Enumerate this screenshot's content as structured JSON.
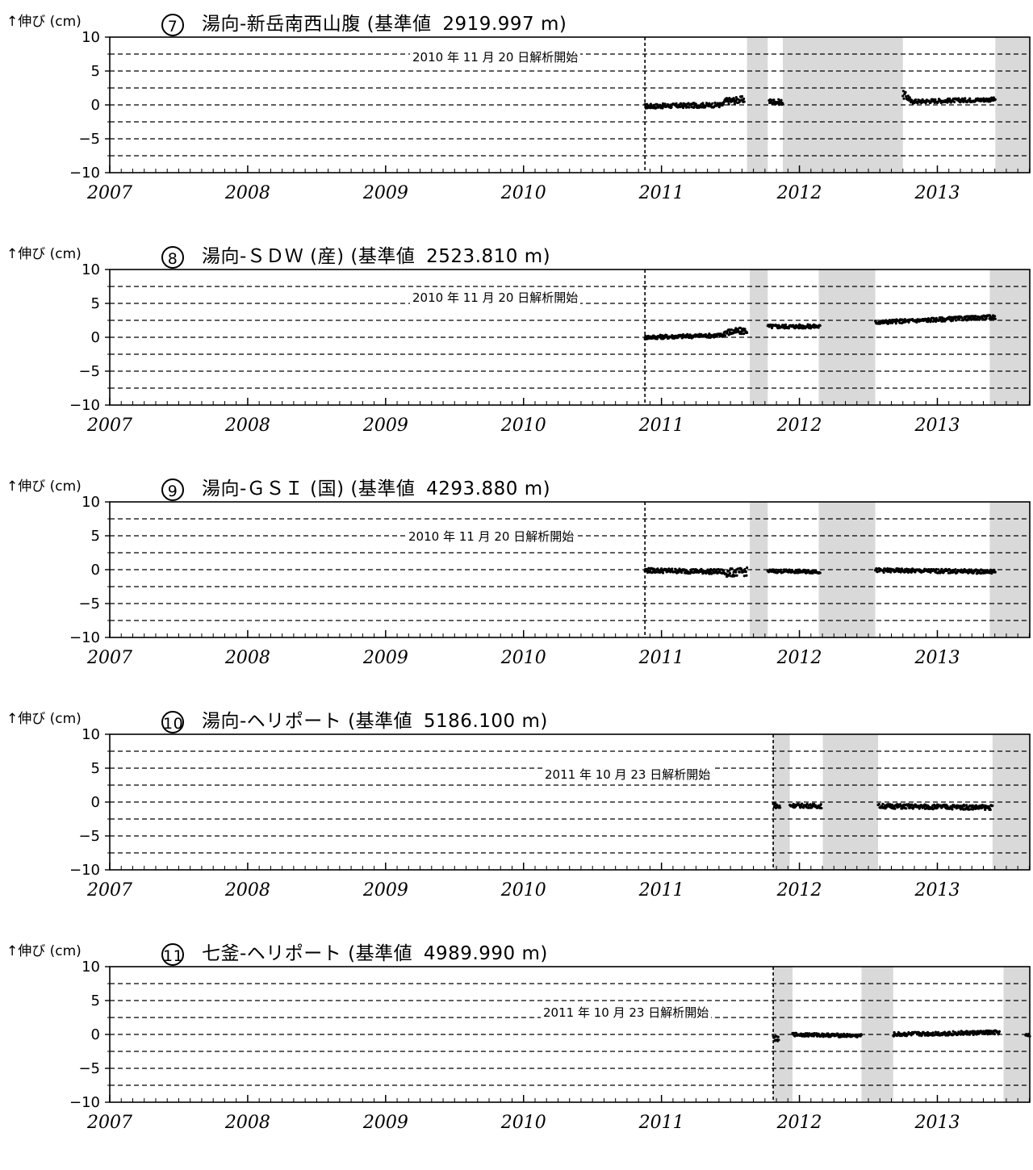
{
  "y_axis_label": "↑伸び (cm)",
  "colors": {
    "shade": "#d9d9d9",
    "points": "#000000",
    "grid": "#000000"
  },
  "chart_data": [
    {
      "type": "scatter",
      "number": "7",
      "title": "湯向-新岳南西山腹 (基準値",
      "base_value": "2919.997 m)",
      "start_note": "2010 年 11 月 20 日解析開始",
      "start": 2010.88,
      "ylim": [
        -10,
        10
      ],
      "yticks": [
        10,
        5,
        0,
        -5,
        -10
      ],
      "xlim": [
        2007,
        2013.67
      ],
      "xticks": [
        "2007",
        "2008",
        "2009",
        "2010",
        "2011",
        "2012",
        "2013"
      ],
      "gaps": [
        [
          2011.62,
          2011.77
        ],
        [
          2011.88,
          2012.75
        ],
        [
          2013.42,
          2013.67
        ]
      ],
      "segments": [
        {
          "t0": 2010.88,
          "t1": 2011.45,
          "v0": -0.2,
          "v1": 0.0,
          "noise": 0.35
        },
        {
          "t0": 2011.45,
          "t1": 2011.6,
          "v0": 0.5,
          "v1": 0.8,
          "noise": 0.5
        },
        {
          "t0": 2011.78,
          "t1": 2011.88,
          "v0": 0.5,
          "v1": 0.4,
          "noise": 0.4
        },
        {
          "t0": 2012.75,
          "t1": 2012.8,
          "v0": 1.5,
          "v1": 1.0,
          "noise": 0.6
        },
        {
          "t0": 2012.8,
          "t1": 2013.42,
          "v0": 0.5,
          "v1": 0.8,
          "noise": 0.3
        }
      ]
    },
    {
      "type": "scatter",
      "number": "8",
      "title": "湯向-ＳＤＷ (産) (基準値",
      "base_value": "2523.810 m)",
      "start_note": "2010 年 11 月 20 日解析開始",
      "start": 2010.88,
      "ylim": [
        -10,
        10
      ],
      "yticks": [
        10,
        5,
        0,
        -5,
        -10
      ],
      "xlim": [
        2007,
        2013.67
      ],
      "xticks": [
        "2007",
        "2008",
        "2009",
        "2010",
        "2011",
        "2012",
        "2013"
      ],
      "gaps": [
        [
          2011.64,
          2011.77
        ],
        [
          2012.14,
          2012.55
        ],
        [
          2013.38,
          2013.67
        ]
      ],
      "segments": [
        {
          "t0": 2010.88,
          "t1": 2011.45,
          "v0": 0.0,
          "v1": 0.3,
          "noise": 0.3
        },
        {
          "t0": 2011.45,
          "t1": 2011.62,
          "v0": 0.7,
          "v1": 1.0,
          "noise": 0.5
        },
        {
          "t0": 2011.77,
          "t1": 2012.15,
          "v0": 1.6,
          "v1": 1.6,
          "noise": 0.3
        },
        {
          "t0": 2012.55,
          "t1": 2013.42,
          "v0": 2.2,
          "v1": 3.0,
          "noise": 0.3
        }
      ]
    },
    {
      "type": "scatter",
      "number": "9",
      "title": "湯向-ＧＳＩ (国) (基準値",
      "base_value": "4293.880 m)",
      "start_note": "2010 年 11 月 20 日解析開始",
      "start": 2010.88,
      "ylim": [
        -10,
        10
      ],
      "yticks": [
        10,
        5,
        0,
        -5,
        -10
      ],
      "xlim": [
        2007,
        2013.67
      ],
      "xticks": [
        "2007",
        "2008",
        "2009",
        "2010",
        "2011",
        "2012",
        "2013"
      ],
      "gaps": [
        [
          2011.64,
          2011.77
        ],
        [
          2012.14,
          2012.55
        ],
        [
          2013.38,
          2013.67
        ]
      ],
      "segments": [
        {
          "t0": 2010.88,
          "t1": 2011.45,
          "v0": -0.1,
          "v1": -0.3,
          "noise": 0.35
        },
        {
          "t0": 2011.45,
          "t1": 2011.62,
          "v0": -0.5,
          "v1": -0.3,
          "noise": 0.6
        },
        {
          "t0": 2011.77,
          "t1": 2012.15,
          "v0": -0.2,
          "v1": -0.3,
          "noise": 0.25
        },
        {
          "t0": 2012.55,
          "t1": 2013.42,
          "v0": -0.1,
          "v1": -0.3,
          "noise": 0.3
        }
      ]
    },
    {
      "type": "scatter",
      "number": "10",
      "title": "湯向-ヘリポート (基準値",
      "base_value": "5186.100 m)",
      "start_note": "2011 年 10 月 23 日解析開始",
      "start": 2011.81,
      "ylim": [
        -10,
        10
      ],
      "yticks": [
        10,
        5,
        0,
        -5,
        -10
      ],
      "xlim": [
        2007,
        2013.67
      ],
      "xticks": [
        "2007",
        "2008",
        "2009",
        "2010",
        "2011",
        "2012",
        "2013"
      ],
      "gaps": [
        [
          2011.81,
          2011.93
        ],
        [
          2012.17,
          2012.57
        ],
        [
          2013.4,
          2013.67
        ]
      ],
      "segments": [
        {
          "t0": 2011.81,
          "t1": 2011.86,
          "v0": -0.3,
          "v1": -0.8,
          "noise": 0.4
        },
        {
          "t0": 2011.93,
          "t1": 2012.16,
          "v0": -0.5,
          "v1": -0.6,
          "noise": 0.3
        },
        {
          "t0": 2012.57,
          "t1": 2013.4,
          "v0": -0.6,
          "v1": -0.8,
          "noise": 0.35
        }
      ]
    },
    {
      "type": "scatter",
      "number": "11",
      "title": "七釜-ヘリポート (基準値",
      "base_value": "4989.990 m)",
      "start_note": "2011 年 10 月 23 日解析開始",
      "start": 2011.81,
      "ylim": [
        -10,
        10
      ],
      "yticks": [
        10,
        5,
        0,
        -5,
        -10
      ],
      "xlim": [
        2007,
        2013.67
      ],
      "xticks": [
        "2007",
        "2008",
        "2009",
        "2010",
        "2011",
        "2012",
        "2013"
      ],
      "gaps": [
        [
          2011.81,
          2011.95
        ],
        [
          2012.45,
          2012.68
        ],
        [
          2013.48,
          2013.67
        ]
      ],
      "segments": [
        {
          "t0": 2011.81,
          "t1": 2011.85,
          "v0": -0.5,
          "v1": -0.8,
          "noise": 0.4
        },
        {
          "t0": 2011.95,
          "t1": 2012.45,
          "v0": 0.0,
          "v1": -0.2,
          "noise": 0.25
        },
        {
          "t0": 2012.68,
          "t1": 2013.45,
          "v0": 0.0,
          "v1": 0.3,
          "noise": 0.3
        },
        {
          "t0": 2013.64,
          "t1": 2013.67,
          "v0": -0.2,
          "v1": -0.2,
          "noise": 0.3
        }
      ]
    }
  ]
}
